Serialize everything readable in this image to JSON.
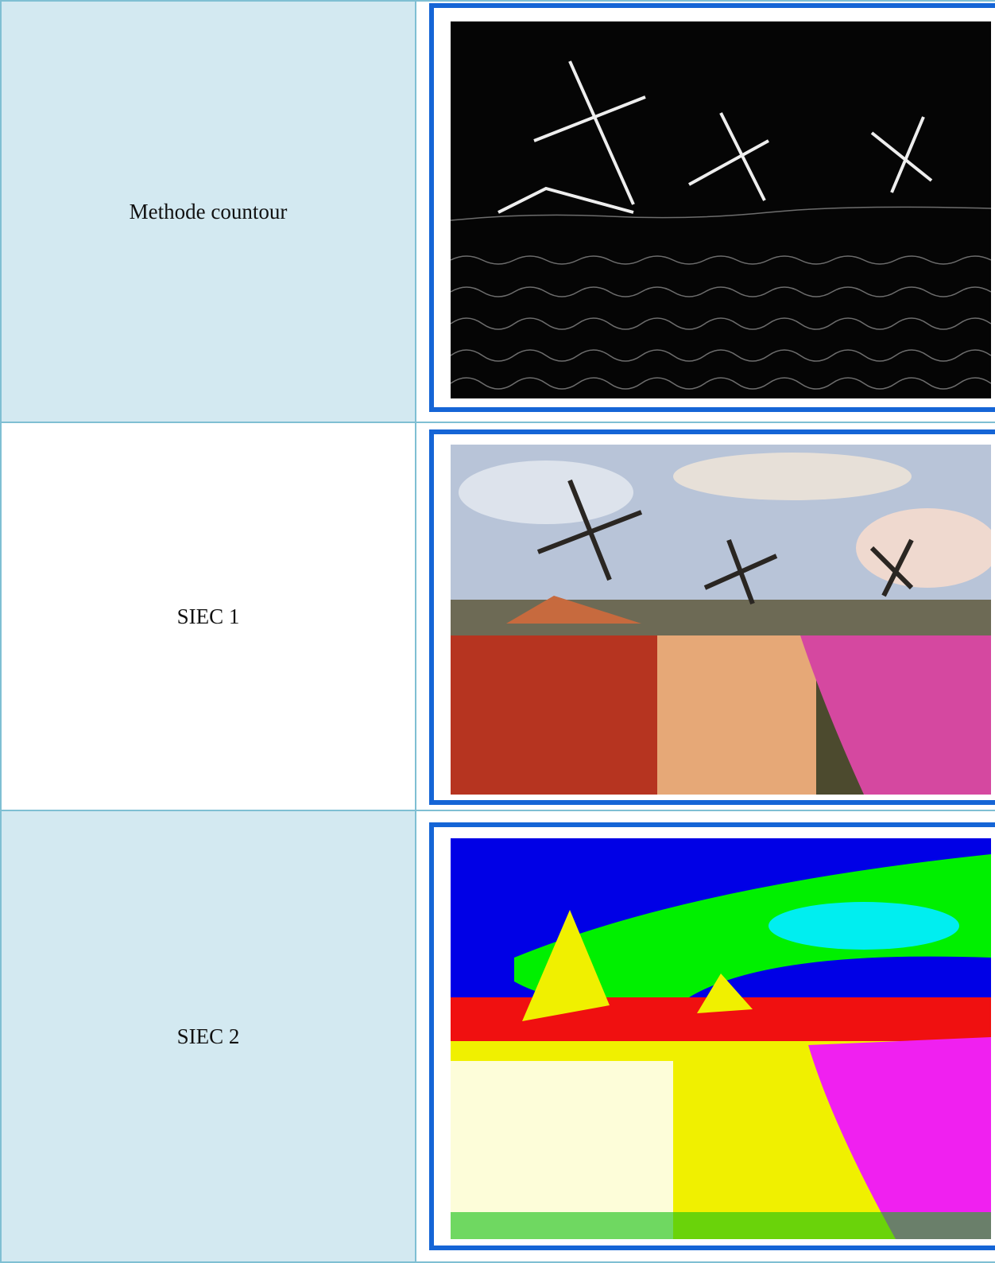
{
  "table": {
    "rows": [
      [
        "Methode countour"
      ],
      [
        "SIEC 1"
      ],
      [
        "SIEC 2"
      ]
    ]
  }
}
